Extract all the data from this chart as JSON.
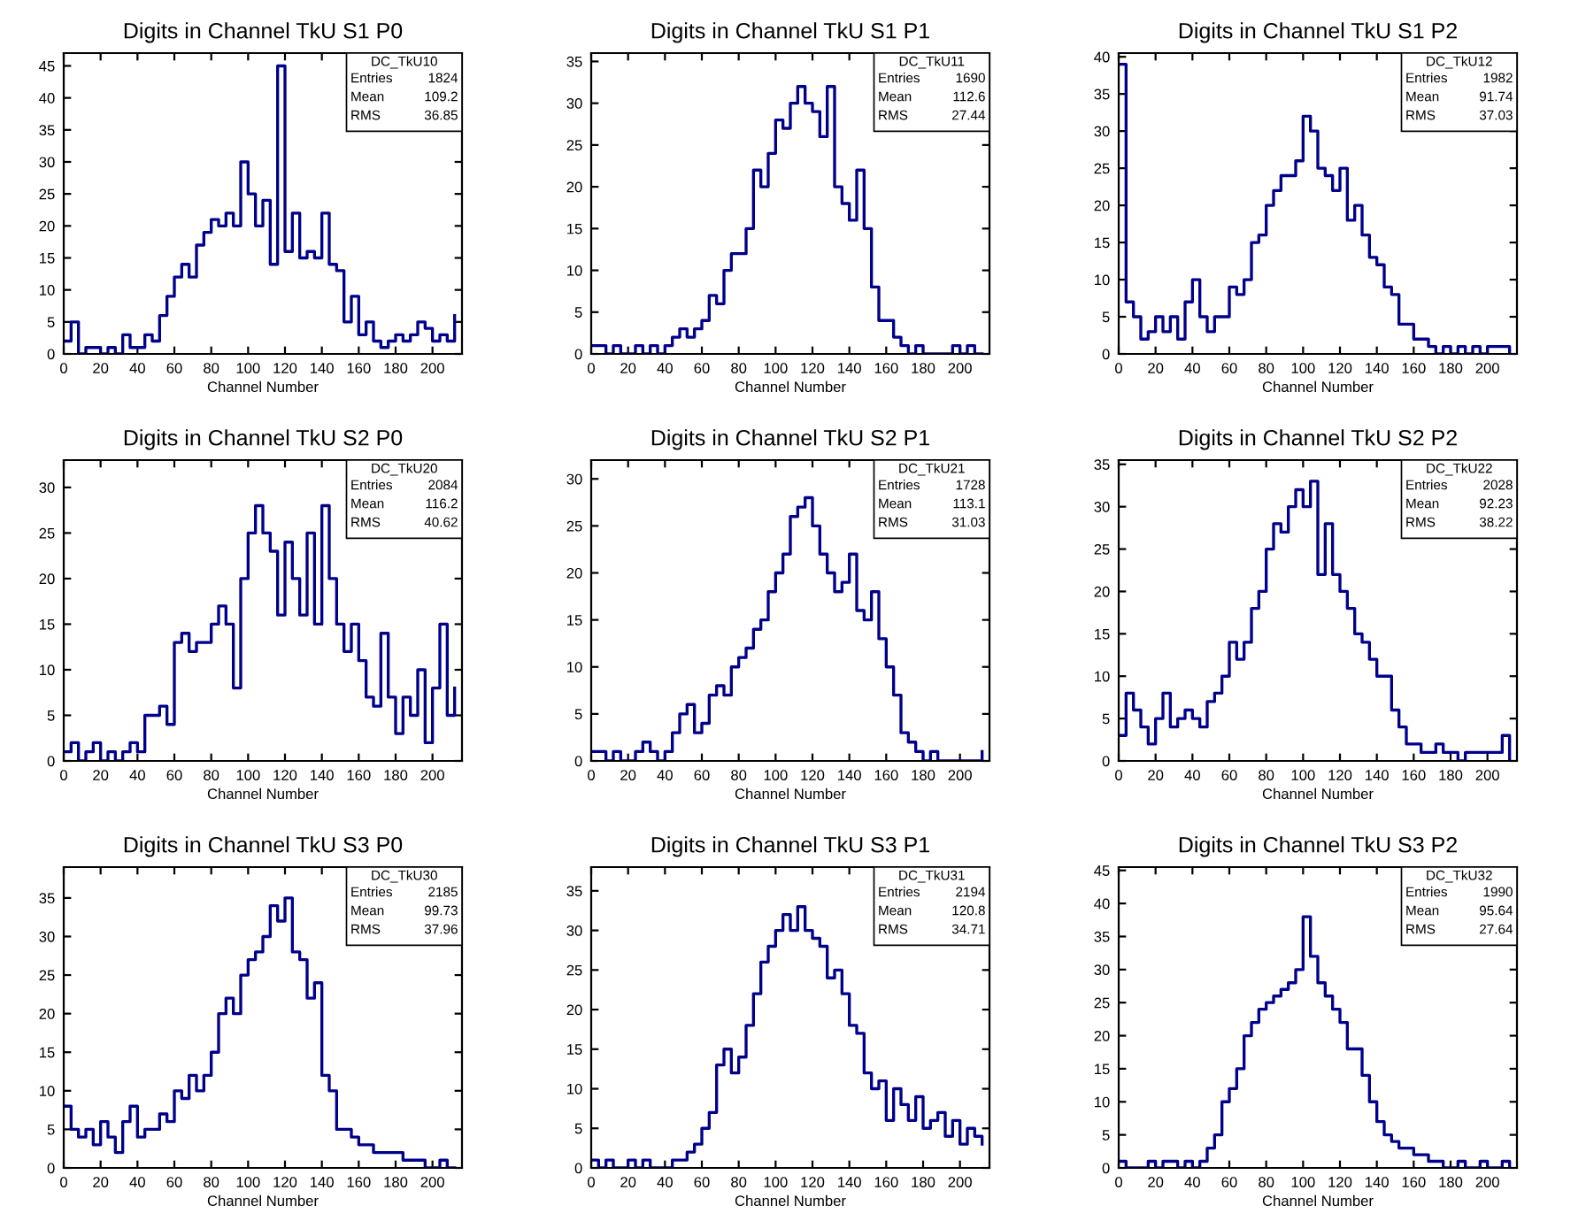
{
  "chart_data": [
    {
      "type": "step",
      "title": "Digits in Channel TkU S1 P0",
      "xlabel": "Channel Number",
      "color": "#00008b",
      "xlim": [
        0,
        216
      ],
      "xticks": [
        0,
        20,
        40,
        60,
        80,
        100,
        120,
        140,
        160,
        180,
        200
      ],
      "ylim": [
        0,
        47
      ],
      "yticks": [
        0,
        5,
        10,
        15,
        20,
        25,
        30,
        35,
        40,
        45
      ],
      "annotations": [
        "DC_TkU10",
        "Entries",
        "1824",
        "Mean",
        "109.2",
        "RMS",
        "36.85"
      ],
      "x": [
        0,
        4,
        8,
        12,
        16,
        20,
        24,
        28,
        32,
        36,
        40,
        44,
        48,
        52,
        56,
        60,
        64,
        68,
        72,
        76,
        80,
        84,
        88,
        92,
        96,
        100,
        104,
        108,
        112,
        116,
        120,
        124,
        128,
        132,
        136,
        140,
        144,
        148,
        152,
        156,
        160,
        164,
        168,
        172,
        176,
        180,
        184,
        188,
        192,
        196,
        200,
        204,
        208,
        212
      ],
      "values": [
        2,
        5,
        0,
        1,
        1,
        0,
        1,
        0,
        3,
        1,
        1,
        3,
        2,
        6,
        9,
        12,
        14,
        12,
        17,
        19,
        21,
        20,
        22,
        20,
        30,
        25,
        20,
        24,
        14,
        45,
        16,
        22,
        15,
        16,
        15,
        22,
        14,
        13,
        5,
        9,
        3,
        5,
        2,
        1,
        2,
        3,
        2,
        3,
        5,
        4,
        2,
        3,
        2,
        6
      ]
    },
    {
      "type": "step",
      "title": "Digits in Channel TkU S1 P1",
      "xlabel": "Channel Number",
      "color": "#00008b",
      "xlim": [
        0,
        216
      ],
      "xticks": [
        0,
        20,
        40,
        60,
        80,
        100,
        120,
        140,
        160,
        180,
        200
      ],
      "ylim": [
        0,
        36
      ],
      "yticks": [
        0,
        5,
        10,
        15,
        20,
        25,
        30,
        35
      ],
      "annotations": [
        "DC_TkU11",
        "Entries",
        "1690",
        "Mean",
        "112.6",
        "RMS",
        "27.44"
      ],
      "x": [
        0,
        4,
        8,
        12,
        16,
        20,
        24,
        28,
        32,
        36,
        40,
        44,
        48,
        52,
        56,
        60,
        64,
        68,
        72,
        76,
        80,
        84,
        88,
        92,
        96,
        100,
        104,
        108,
        112,
        116,
        120,
        124,
        128,
        132,
        136,
        140,
        144,
        148,
        152,
        156,
        160,
        164,
        168,
        172,
        176,
        180,
        184,
        188,
        192,
        196,
        200,
        204,
        208,
        212
      ],
      "values": [
        1,
        1,
        0,
        1,
        0,
        0,
        1,
        0,
        1,
        0,
        1,
        2,
        3,
        2,
        3,
        4,
        7,
        6,
        10,
        12,
        12,
        15,
        22,
        20,
        24,
        28,
        27,
        30,
        32,
        30,
        29,
        26,
        32,
        20,
        18,
        16,
        22,
        15,
        8,
        4,
        4,
        2,
        1,
        0,
        1,
        0,
        0,
        0,
        0,
        1,
        0,
        1,
        0,
        0
      ]
    },
    {
      "type": "step",
      "title": "Digits in Channel TkU S1 P2",
      "xlabel": "Channel Number",
      "color": "#00008b",
      "xlim": [
        0,
        216
      ],
      "xticks": [
        0,
        20,
        40,
        60,
        80,
        100,
        120,
        140,
        160,
        180,
        200
      ],
      "ylim": [
        0,
        40.5
      ],
      "yticks": [
        0,
        5,
        10,
        15,
        20,
        25,
        30,
        35,
        40
      ],
      "annotations": [
        "DC_TkU12",
        "Entries",
        "1982",
        "Mean",
        "91.74",
        "RMS",
        "37.03"
      ],
      "x": [
        0,
        4,
        8,
        12,
        16,
        20,
        24,
        28,
        32,
        36,
        40,
        44,
        48,
        52,
        56,
        60,
        64,
        68,
        72,
        76,
        80,
        84,
        88,
        92,
        96,
        100,
        104,
        108,
        112,
        116,
        120,
        124,
        128,
        132,
        136,
        140,
        144,
        148,
        152,
        156,
        160,
        164,
        168,
        172,
        176,
        180,
        184,
        188,
        192,
        196,
        200,
        204,
        208,
        212
      ],
      "values": [
        39,
        7,
        5,
        2,
        3,
        5,
        3,
        5,
        2,
        7,
        10,
        5,
        3,
        5,
        5,
        9,
        8,
        10,
        15,
        16,
        20,
        22,
        24,
        24,
        26,
        32,
        30,
        25,
        24,
        22,
        25,
        18,
        20,
        16,
        13,
        12,
        9,
        8,
        4,
        4,
        2,
        2,
        1,
        0,
        1,
        0,
        1,
        0,
        1,
        0,
        1,
        1,
        1,
        0
      ]
    },
    {
      "type": "step",
      "title": "Digits in Channel TkU S2 P0",
      "xlabel": "Channel Number",
      "color": "#00008b",
      "xlim": [
        0,
        216
      ],
      "xticks": [
        0,
        20,
        40,
        60,
        80,
        100,
        120,
        140,
        160,
        180,
        200
      ],
      "ylim": [
        0,
        33
      ],
      "yticks": [
        0,
        5,
        10,
        15,
        20,
        25,
        30
      ],
      "annotations": [
        "DC_TkU20",
        "Entries",
        "2084",
        "Mean",
        "116.2",
        "RMS",
        "40.62"
      ],
      "x": [
        0,
        4,
        8,
        12,
        16,
        20,
        24,
        28,
        32,
        36,
        40,
        44,
        48,
        52,
        56,
        60,
        64,
        68,
        72,
        76,
        80,
        84,
        88,
        92,
        96,
        100,
        104,
        108,
        112,
        116,
        120,
        124,
        128,
        132,
        136,
        140,
        144,
        148,
        152,
        156,
        160,
        164,
        168,
        172,
        176,
        180,
        184,
        188,
        192,
        196,
        200,
        204,
        208,
        212
      ],
      "values": [
        1,
        2,
        0,
        1,
        2,
        0,
        1,
        0,
        1,
        2,
        1,
        5,
        5,
        6,
        4,
        13,
        14,
        12,
        13,
        13,
        15,
        17,
        15,
        8,
        20,
        25,
        28,
        25,
        23,
        16,
        24,
        20,
        16,
        25,
        15,
        28,
        20,
        15,
        12,
        15,
        11,
        7,
        6,
        14,
        7,
        3,
        7,
        5,
        10,
        2,
        8,
        15,
        5,
        8
      ]
    },
    {
      "type": "step",
      "title": "Digits in Channel TkU S2 P1",
      "xlabel": "Channel Number",
      "color": "#00008b",
      "xlim": [
        0,
        216
      ],
      "xticks": [
        0,
        20,
        40,
        60,
        80,
        100,
        120,
        140,
        160,
        180,
        200
      ],
      "ylim": [
        0,
        32
      ],
      "yticks": [
        0,
        5,
        10,
        15,
        20,
        25,
        30
      ],
      "annotations": [
        "DC_TkU21",
        "Entries",
        "1728",
        "Mean",
        "113.1",
        "RMS",
        "31.03"
      ],
      "x": [
        0,
        4,
        8,
        12,
        16,
        20,
        24,
        28,
        32,
        36,
        40,
        44,
        48,
        52,
        56,
        60,
        64,
        68,
        72,
        76,
        80,
        84,
        88,
        92,
        96,
        100,
        104,
        108,
        112,
        116,
        120,
        124,
        128,
        132,
        136,
        140,
        144,
        148,
        152,
        156,
        160,
        164,
        168,
        172,
        176,
        180,
        184,
        188,
        192,
        196,
        200,
        204,
        208,
        212
      ],
      "values": [
        1,
        1,
        0,
        1,
        0,
        0,
        1,
        2,
        1,
        0,
        1,
        3,
        5,
        6,
        3,
        4,
        7,
        8,
        7,
        10,
        11,
        12,
        14,
        15,
        18,
        20,
        22,
        26,
        27,
        28,
        25,
        22,
        20,
        18,
        19,
        22,
        16,
        15,
        18,
        13,
        10,
        7,
        3,
        2,
        1,
        0,
        1,
        0,
        0,
        0,
        0,
        0,
        0,
        1
      ]
    },
    {
      "type": "step",
      "title": "Digits in Channel TkU S2 P2",
      "xlabel": "Channel Number",
      "color": "#00008b",
      "xlim": [
        0,
        216
      ],
      "xticks": [
        0,
        20,
        40,
        60,
        80,
        100,
        120,
        140,
        160,
        180,
        200
      ],
      "ylim": [
        0,
        35.5
      ],
      "yticks": [
        0,
        5,
        10,
        15,
        20,
        25,
        30,
        35
      ],
      "annotations": [
        "DC_TkU22",
        "Entries",
        "2028",
        "Mean",
        "92.23",
        "RMS",
        "38.22"
      ],
      "x": [
        0,
        4,
        8,
        12,
        16,
        20,
        24,
        28,
        32,
        36,
        40,
        44,
        48,
        52,
        56,
        60,
        64,
        68,
        72,
        76,
        80,
        84,
        88,
        92,
        96,
        100,
        104,
        108,
        112,
        116,
        120,
        124,
        128,
        132,
        136,
        140,
        144,
        148,
        152,
        156,
        160,
        164,
        168,
        172,
        176,
        180,
        184,
        188,
        192,
        196,
        200,
        204,
        208,
        212
      ],
      "values": [
        3,
        8,
        6,
        4,
        2,
        5,
        8,
        4,
        5,
        6,
        5,
        4,
        7,
        8,
        10,
        14,
        12,
        14,
        18,
        20,
        25,
        28,
        27,
        30,
        32,
        30,
        33,
        22,
        28,
        22,
        20,
        18,
        15,
        14,
        12,
        10,
        10,
        6,
        4,
        2,
        2,
        1,
        1,
        2,
        1,
        1,
        0,
        1,
        1,
        1,
        1,
        1,
        3,
        0
      ]
    },
    {
      "type": "step",
      "title": "Digits in Channel TkU S3 P0",
      "xlabel": "Channel Number",
      "color": "#00008b",
      "xlim": [
        0,
        216
      ],
      "xticks": [
        0,
        20,
        40,
        60,
        80,
        100,
        120,
        140,
        160,
        180,
        200
      ],
      "ylim": [
        0,
        39
      ],
      "yticks": [
        0,
        5,
        10,
        15,
        20,
        25,
        30,
        35
      ],
      "annotations": [
        "DC_TkU30",
        "Entries",
        "2185",
        "Mean",
        "99.73",
        "RMS",
        "37.96"
      ],
      "x": [
        0,
        4,
        8,
        12,
        16,
        20,
        24,
        28,
        32,
        36,
        40,
        44,
        48,
        52,
        56,
        60,
        64,
        68,
        72,
        76,
        80,
        84,
        88,
        92,
        96,
        100,
        104,
        108,
        112,
        116,
        120,
        124,
        128,
        132,
        136,
        140,
        144,
        148,
        152,
        156,
        160,
        164,
        168,
        172,
        176,
        180,
        184,
        188,
        192,
        196,
        200,
        204,
        208,
        212
      ],
      "values": [
        8,
        5,
        4,
        5,
        3,
        6,
        4,
        2,
        6,
        8,
        4,
        5,
        5,
        7,
        6,
        10,
        9,
        12,
        10,
        12,
        15,
        20,
        22,
        20,
        25,
        27,
        28,
        30,
        34,
        32,
        35,
        28,
        27,
        22,
        24,
        12,
        10,
        5,
        5,
        4,
        3,
        3,
        2,
        2,
        2,
        2,
        1,
        1,
        1,
        0,
        0,
        1,
        0,
        0
      ]
    },
    {
      "type": "step",
      "title": "Digits in Channel TkU S3 P1",
      "xlabel": "Channel Number",
      "color": "#00008b",
      "xlim": [
        0,
        216
      ],
      "xticks": [
        0,
        20,
        40,
        60,
        80,
        100,
        120,
        140,
        160,
        180,
        200
      ],
      "ylim": [
        0,
        38
      ],
      "yticks": [
        0,
        5,
        10,
        15,
        20,
        25,
        30,
        35
      ],
      "annotations": [
        "DC_TkU31",
        "Entries",
        "2194",
        "Mean",
        "120.8",
        "RMS",
        "34.71"
      ],
      "x": [
        0,
        4,
        8,
        12,
        16,
        20,
        24,
        28,
        32,
        36,
        40,
        44,
        48,
        52,
        56,
        60,
        64,
        68,
        72,
        76,
        80,
        84,
        88,
        92,
        96,
        100,
        104,
        108,
        112,
        116,
        120,
        124,
        128,
        132,
        136,
        140,
        144,
        148,
        152,
        156,
        160,
        164,
        168,
        172,
        176,
        180,
        184,
        188,
        192,
        196,
        200,
        204,
        208,
        212
      ],
      "values": [
        1,
        0,
        1,
        0,
        0,
        1,
        0,
        1,
        0,
        0,
        0,
        1,
        1,
        2,
        3,
        5,
        7,
        13,
        15,
        12,
        14,
        18,
        22,
        26,
        28,
        30,
        32,
        30,
        33,
        30,
        29,
        28,
        24,
        25,
        22,
        18,
        17,
        12,
        10,
        11,
        6,
        10,
        8,
        6,
        9,
        5,
        6,
        7,
        4,
        6,
        3,
        5,
        4,
        3
      ]
    },
    {
      "type": "step",
      "title": "Digits in Channel TkU S3 P2",
      "xlabel": "Channel Number",
      "color": "#00008b",
      "xlim": [
        0,
        216
      ],
      "xticks": [
        0,
        20,
        40,
        60,
        80,
        100,
        120,
        140,
        160,
        180,
        200
      ],
      "ylim": [
        0,
        45.5
      ],
      "yticks": [
        0,
        5,
        10,
        15,
        20,
        25,
        30,
        35,
        40,
        45
      ],
      "annotations": [
        "DC_TkU32",
        "Entries",
        "1990",
        "Mean",
        "95.64",
        "RMS",
        "27.64"
      ],
      "x": [
        0,
        4,
        8,
        12,
        16,
        20,
        24,
        28,
        32,
        36,
        40,
        44,
        48,
        52,
        56,
        60,
        64,
        68,
        72,
        76,
        80,
        84,
        88,
        92,
        96,
        100,
        104,
        108,
        112,
        116,
        120,
        124,
        128,
        132,
        136,
        140,
        144,
        148,
        152,
        156,
        160,
        164,
        168,
        172,
        176,
        180,
        184,
        188,
        192,
        196,
        200,
        204,
        208,
        212
      ],
      "values": [
        1,
        0,
        0,
        0,
        1,
        0,
        1,
        1,
        0,
        1,
        0,
        1,
        3,
        5,
        10,
        12,
        15,
        20,
        22,
        24,
        25,
        26,
        27,
        28,
        30,
        38,
        32,
        28,
        26,
        24,
        22,
        18,
        18,
        14,
        10,
        7,
        5,
        4,
        3,
        3,
        2,
        2,
        1,
        1,
        0,
        0,
        1,
        0,
        0,
        1,
        0,
        0,
        1,
        0
      ]
    }
  ]
}
